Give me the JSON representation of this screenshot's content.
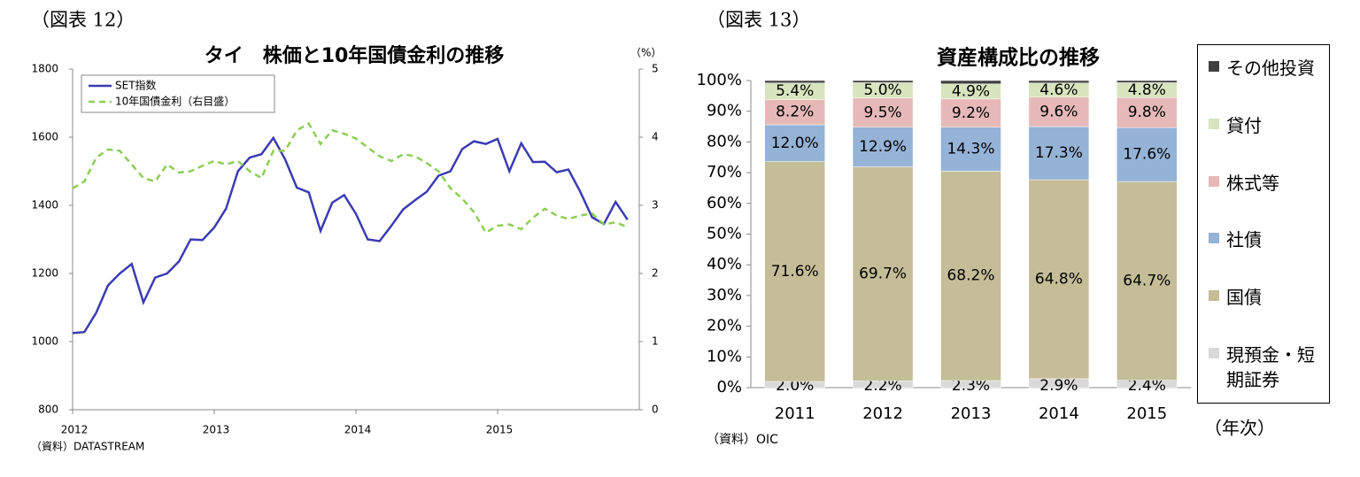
{
  "chart_data": [
    {
      "type": "line",
      "label": "（図表 12）",
      "title": "タイ　株価と10年国債金利の推移",
      "y2_unit": "（%）",
      "source": "（資料）DATASTREAM",
      "x": [
        2012,
        2012.083,
        2012.167,
        2012.25,
        2012.333,
        2012.417,
        2012.5,
        2012.583,
        2012.667,
        2012.75,
        2012.833,
        2012.917,
        2013,
        2013.083,
        2013.167,
        2013.25,
        2013.333,
        2013.417,
        2013.5,
        2013.583,
        2013.667,
        2013.75,
        2013.833,
        2013.917,
        2014,
        2014.083,
        2014.167,
        2014.25,
        2014.333,
        2014.417,
        2014.5,
        2014.583,
        2014.667,
        2014.75,
        2014.833,
        2014.917,
        2015,
        2015.083,
        2015.167,
        2015.25,
        2015.333,
        2015.417,
        2015.5,
        2015.583,
        2015.667,
        2015.75,
        2015.833,
        2015.917
      ],
      "xlim": [
        2012,
        2016
      ],
      "xticks": [
        2012,
        2013,
        2014,
        2015
      ],
      "ylim": [
        800,
        1800
      ],
      "yticks": [
        800,
        1000,
        1200,
        1400,
        1600,
        1800
      ],
      "y2lim": [
        0,
        5
      ],
      "y2ticks": [
        0,
        1,
        2,
        3,
        4,
        5
      ],
      "series": [
        {
          "name": "SET指数",
          "color": "#3b3bb3",
          "values": [
            1025,
            1028,
            1085,
            1165,
            1200,
            1228,
            1115,
            1188,
            1200,
            1235,
            1300,
            1298,
            1335,
            1390,
            1500,
            1540,
            1550,
            1598,
            1535,
            1452,
            1438,
            1325,
            1408,
            1430,
            1375,
            1300,
            1295,
            1340,
            1388,
            1415,
            1440,
            1487,
            1500,
            1565,
            1588,
            1580,
            1595,
            1500,
            1582,
            1527,
            1528,
            1497,
            1505,
            1440,
            1365,
            1345,
            1410,
            1358
          ]
        },
        {
          "name": "10年国債金利（右目盛）",
          "color": "#8cce55",
          "dashed": true,
          "axis": "y2",
          "values": [
            3.25,
            3.35,
            3.7,
            3.82,
            3.8,
            3.6,
            3.4,
            3.35,
            3.6,
            3.48,
            3.5,
            3.58,
            3.65,
            3.6,
            3.65,
            3.5,
            3.4,
            3.8,
            3.8,
            4.1,
            4.2,
            3.9,
            4.1,
            4.05,
            3.98,
            3.85,
            3.72,
            3.65,
            3.75,
            3.72,
            3.62,
            3.5,
            3.25,
            3.1,
            2.9,
            2.6,
            2.7,
            2.72,
            2.65,
            2.82,
            2.95,
            2.85,
            2.8,
            2.85,
            2.88,
            2.72,
            2.75,
            2.68
          ]
        }
      ]
    },
    {
      "type": "bar",
      "stacked": true,
      "label": "（図表 13）",
      "title": "資産構成比の推移",
      "source": "（資料）OIC",
      "x_unit": "（年次）",
      "categories": [
        "2011",
        "2012",
        "2013",
        "2014",
        "2015"
      ],
      "ylim": [
        0,
        100
      ],
      "yticks": [
        {
          "value": 0,
          "label": "0%"
        },
        {
          "value": 10,
          "label": "10%"
        },
        {
          "value": 20,
          "label": "20%"
        },
        {
          "value": 30,
          "label": "30%"
        },
        {
          "value": 40,
          "label": "40%"
        },
        {
          "value": 50,
          "label": "50%"
        },
        {
          "value": 60,
          "label": "60%"
        },
        {
          "value": 70,
          "label": "70%"
        },
        {
          "value": 80,
          "label": "80%"
        },
        {
          "value": 90,
          "label": "90%"
        },
        {
          "value": 100,
          "label": "100%"
        }
      ],
      "series": [
        {
          "name": "現預金・短期証券",
          "color": "#d9d9d9",
          "values": [
            2.0,
            2.2,
            2.3,
            2.9,
            2.4
          ],
          "value_labels": [
            "2.0%",
            "2.2%",
            "2.3%",
            "2.9%",
            "2.4%"
          ]
        },
        {
          "name": "国債",
          "color": "#c4bd97",
          "values": [
            71.6,
            69.7,
            68.2,
            64.8,
            64.7
          ],
          "value_labels": [
            "71.6%",
            "69.7%",
            "68.2%",
            "64.8%",
            "64.7%"
          ]
        },
        {
          "name": "社債",
          "color": "#95b3d7",
          "values": [
            12.0,
            12.9,
            14.3,
            17.3,
            17.6
          ],
          "value_labels": [
            "12.0%",
            "12.9%",
            "14.3%",
            "17.3%",
            "17.6%"
          ]
        },
        {
          "name": "株式等",
          "color": "#e6b9b8",
          "values": [
            8.2,
            9.5,
            9.2,
            9.6,
            9.8
          ],
          "value_labels": [
            "8.2%",
            "9.5%",
            "9.2%",
            "9.6%",
            "9.8%"
          ]
        },
        {
          "name": "貸付",
          "color": "#d7e4bd",
          "values": [
            5.4,
            5.0,
            4.9,
            4.6,
            4.8
          ],
          "value_labels": [
            "5.4%",
            "5.0%",
            "4.9%",
            "4.6%",
            "4.8%"
          ]
        },
        {
          "name": "その他投資",
          "color": "#404040",
          "values": [
            0.8,
            0.7,
            1.1,
            0.8,
            0.7
          ]
        }
      ]
    }
  ]
}
